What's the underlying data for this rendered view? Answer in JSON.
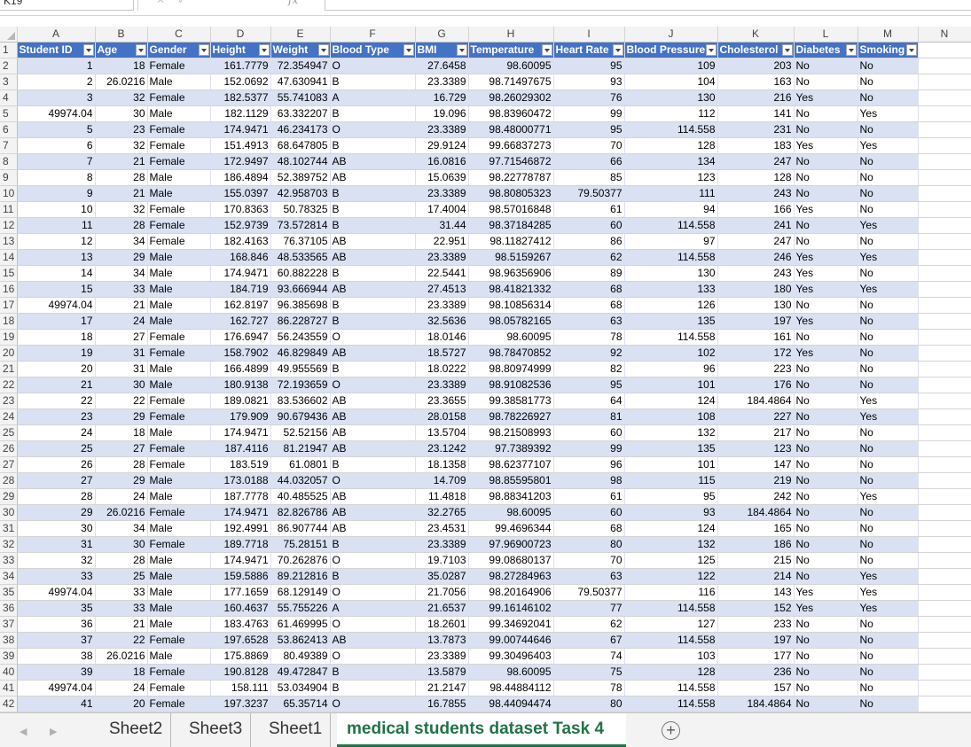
{
  "formula_bar": {
    "name_box": "K19",
    "icons": [
      "✕",
      "✓"
    ],
    "fx_label": "fx",
    "formula": ""
  },
  "columns": [
    "A",
    "B",
    "C",
    "D",
    "E",
    "F",
    "G",
    "H",
    "I",
    "J",
    "K",
    "L",
    "M",
    "N"
  ],
  "headers": [
    "Student ID",
    "Age",
    "Gender",
    "Height",
    "Weight",
    "Blood Type",
    "BMI",
    "Temperature",
    "Heart Rate",
    "Blood Pressure",
    "Cholesterol",
    "Diabetes",
    "Smoking"
  ],
  "rows": [
    [
      "1",
      "18",
      "Female",
      "161.7779",
      "72.354947",
      "O",
      "27.6458",
      "98.60095",
      "95",
      "109",
      "203",
      "No",
      "No"
    ],
    [
      "2",
      "26.0216",
      "Male",
      "152.0692",
      "47.630941",
      "B",
      "23.3389",
      "98.71497675",
      "93",
      "104",
      "163",
      "No",
      "No"
    ],
    [
      "3",
      "32",
      "Female",
      "182.5377",
      "55.741083",
      "A",
      "16.729",
      "98.26029302",
      "76",
      "130",
      "216",
      "Yes",
      "No"
    ],
    [
      "49974.04",
      "30",
      "Male",
      "182.1129",
      "63.332207",
      "B",
      "19.096",
      "98.83960472",
      "99",
      "112",
      "141",
      "No",
      "Yes"
    ],
    [
      "5",
      "23",
      "Female",
      "174.9471",
      "46.234173",
      "O",
      "23.3389",
      "98.48000771",
      "95",
      "114.558",
      "231",
      "No",
      "No"
    ],
    [
      "6",
      "32",
      "Female",
      "151.4913",
      "68.647805",
      "B",
      "29.9124",
      "99.66837273",
      "70",
      "128",
      "183",
      "Yes",
      "Yes"
    ],
    [
      "7",
      "21",
      "Female",
      "172.9497",
      "48.102744",
      "AB",
      "16.0816",
      "97.71546872",
      "66",
      "134",
      "247",
      "No",
      "No"
    ],
    [
      "8",
      "28",
      "Male",
      "186.4894",
      "52.389752",
      "AB",
      "15.0639",
      "98.22778787",
      "85",
      "123",
      "128",
      "No",
      "No"
    ],
    [
      "9",
      "21",
      "Male",
      "155.0397",
      "42.958703",
      "B",
      "23.3389",
      "98.80805323",
      "79.50377",
      "111",
      "243",
      "No",
      "No"
    ],
    [
      "10",
      "32",
      "Female",
      "170.8363",
      "50.78325",
      "B",
      "17.4004",
      "98.57016848",
      "61",
      "94",
      "166",
      "Yes",
      "No"
    ],
    [
      "11",
      "28",
      "Female",
      "152.9739",
      "73.572814",
      "B",
      "31.44",
      "98.37184285",
      "60",
      "114.558",
      "241",
      "No",
      "Yes"
    ],
    [
      "12",
      "34",
      "Female",
      "182.4163",
      "76.37105",
      "AB",
      "22.951",
      "98.11827412",
      "86",
      "97",
      "247",
      "No",
      "No"
    ],
    [
      "13",
      "29",
      "Male",
      "168.846",
      "48.533565",
      "AB",
      "23.3389",
      "98.5159267",
      "62",
      "114.558",
      "246",
      "Yes",
      "Yes"
    ],
    [
      "14",
      "34",
      "Male",
      "174.9471",
      "60.882228",
      "B",
      "22.5441",
      "98.96356906",
      "89",
      "130",
      "243",
      "Yes",
      "No"
    ],
    [
      "15",
      "33",
      "Male",
      "184.719",
      "93.666944",
      "AB",
      "27.4513",
      "98.41821332",
      "68",
      "133",
      "180",
      "Yes",
      "Yes"
    ],
    [
      "49974.04",
      "21",
      "Male",
      "162.8197",
      "96.385698",
      "B",
      "23.3389",
      "98.10856314",
      "68",
      "126",
      "130",
      "No",
      "No"
    ],
    [
      "17",
      "24",
      "Male",
      "162.727",
      "86.228727",
      "B",
      "32.5636",
      "98.05782165",
      "63",
      "135",
      "197",
      "Yes",
      "No"
    ],
    [
      "18",
      "27",
      "Female",
      "176.6947",
      "56.243559",
      "O",
      "18.0146",
      "98.60095",
      "78",
      "114.558",
      "161",
      "No",
      "No"
    ],
    [
      "19",
      "31",
      "Female",
      "158.7902",
      "46.829849",
      "AB",
      "18.5727",
      "98.78470852",
      "92",
      "102",
      "172",
      "Yes",
      "No"
    ],
    [
      "20",
      "31",
      "Male",
      "166.4899",
      "49.955569",
      "B",
      "18.0222",
      "98.80974999",
      "82",
      "96",
      "223",
      "No",
      "No"
    ],
    [
      "21",
      "30",
      "Male",
      "180.9138",
      "72.193659",
      "O",
      "23.3389",
      "98.91082536",
      "95",
      "101",
      "176",
      "No",
      "No"
    ],
    [
      "22",
      "22",
      "Female",
      "189.0821",
      "83.536602",
      "AB",
      "23.3655",
      "99.38581773",
      "64",
      "124",
      "184.4864",
      "No",
      "Yes"
    ],
    [
      "23",
      "29",
      "Female",
      "179.909",
      "90.679436",
      "AB",
      "28.0158",
      "98.78226927",
      "81",
      "108",
      "227",
      "No",
      "Yes"
    ],
    [
      "24",
      "18",
      "Male",
      "174.9471",
      "52.52156",
      "AB",
      "13.5704",
      "98.21508993",
      "60",
      "132",
      "217",
      "No",
      "No"
    ],
    [
      "25",
      "27",
      "Female",
      "187.4116",
      "81.21947",
      "AB",
      "23.1242",
      "97.7389392",
      "99",
      "135",
      "123",
      "No",
      "No"
    ],
    [
      "26",
      "28",
      "Female",
      "183.519",
      "61.0801",
      "B",
      "18.1358",
      "98.62377107",
      "96",
      "101",
      "147",
      "No",
      "No"
    ],
    [
      "27",
      "29",
      "Male",
      "173.0188",
      "44.032057",
      "O",
      "14.709",
      "98.85595801",
      "98",
      "115",
      "219",
      "No",
      "No"
    ],
    [
      "28",
      "24",
      "Male",
      "187.7778",
      "40.485525",
      "AB",
      "11.4818",
      "98.88341203",
      "61",
      "95",
      "242",
      "No",
      "Yes"
    ],
    [
      "29",
      "26.0216",
      "Female",
      "174.9471",
      "82.826786",
      "AB",
      "32.2765",
      "98.60095",
      "60",
      "93",
      "184.4864",
      "No",
      "No"
    ],
    [
      "30",
      "34",
      "Male",
      "192.4991",
      "86.907744",
      "AB",
      "23.4531",
      "99.4696344",
      "68",
      "124",
      "165",
      "No",
      "No"
    ],
    [
      "31",
      "30",
      "Female",
      "189.7718",
      "75.28151",
      "B",
      "23.3389",
      "97.96900723",
      "80",
      "132",
      "186",
      "No",
      "No"
    ],
    [
      "32",
      "28",
      "Male",
      "174.9471",
      "70.262876",
      "O",
      "19.7103",
      "99.08680137",
      "70",
      "125",
      "215",
      "No",
      "No"
    ],
    [
      "33",
      "25",
      "Male",
      "159.5886",
      "89.212816",
      "B",
      "35.0287",
      "98.27284963",
      "63",
      "122",
      "214",
      "No",
      "Yes"
    ],
    [
      "49974.04",
      "33",
      "Male",
      "177.1659",
      "68.129149",
      "O",
      "21.7056",
      "98.20164906",
      "79.50377",
      "116",
      "143",
      "Yes",
      "Yes"
    ],
    [
      "35",
      "33",
      "Male",
      "160.4637",
      "55.755226",
      "A",
      "21.6537",
      "99.16146102",
      "77",
      "114.558",
      "152",
      "Yes",
      "Yes"
    ],
    [
      "36",
      "21",
      "Male",
      "183.4763",
      "61.469995",
      "O",
      "18.2601",
      "99.34692041",
      "62",
      "127",
      "233",
      "No",
      "No"
    ],
    [
      "37",
      "22",
      "Female",
      "197.6528",
      "53.862413",
      "AB",
      "13.7873",
      "99.00744646",
      "67",
      "114.558",
      "197",
      "No",
      "No"
    ],
    [
      "38",
      "26.0216",
      "Male",
      "175.8869",
      "80.49389",
      "O",
      "23.3389",
      "99.30496403",
      "74",
      "103",
      "177",
      "No",
      "No"
    ],
    [
      "39",
      "18",
      "Female",
      "190.8128",
      "49.472847",
      "B",
      "13.5879",
      "98.60095",
      "75",
      "128",
      "236",
      "No",
      "No"
    ],
    [
      "49974.04",
      "24",
      "Female",
      "158.111",
      "53.034904",
      "B",
      "21.2147",
      "98.44884112",
      "78",
      "114.558",
      "157",
      "No",
      "No"
    ],
    [
      "41",
      "20",
      "Female",
      "197.3237",
      "65.35714",
      "O",
      "16.7855",
      "98.44094474",
      "80",
      "114.558",
      "184.4864",
      "No",
      "No"
    ]
  ],
  "tabs": [
    {
      "label": "Sheet2",
      "active": false
    },
    {
      "label": "Sheet3",
      "active": false
    },
    {
      "label": "Sheet1",
      "active": false
    },
    {
      "label": "medical students dataset Task 4",
      "active": true
    }
  ],
  "nav_arrows": [
    "◀",
    "▶"
  ],
  "add_sheet_label": "+",
  "colors": {
    "table_header": "#4472c4",
    "band": "#d9e1f2",
    "active_tab": "#217346"
  }
}
